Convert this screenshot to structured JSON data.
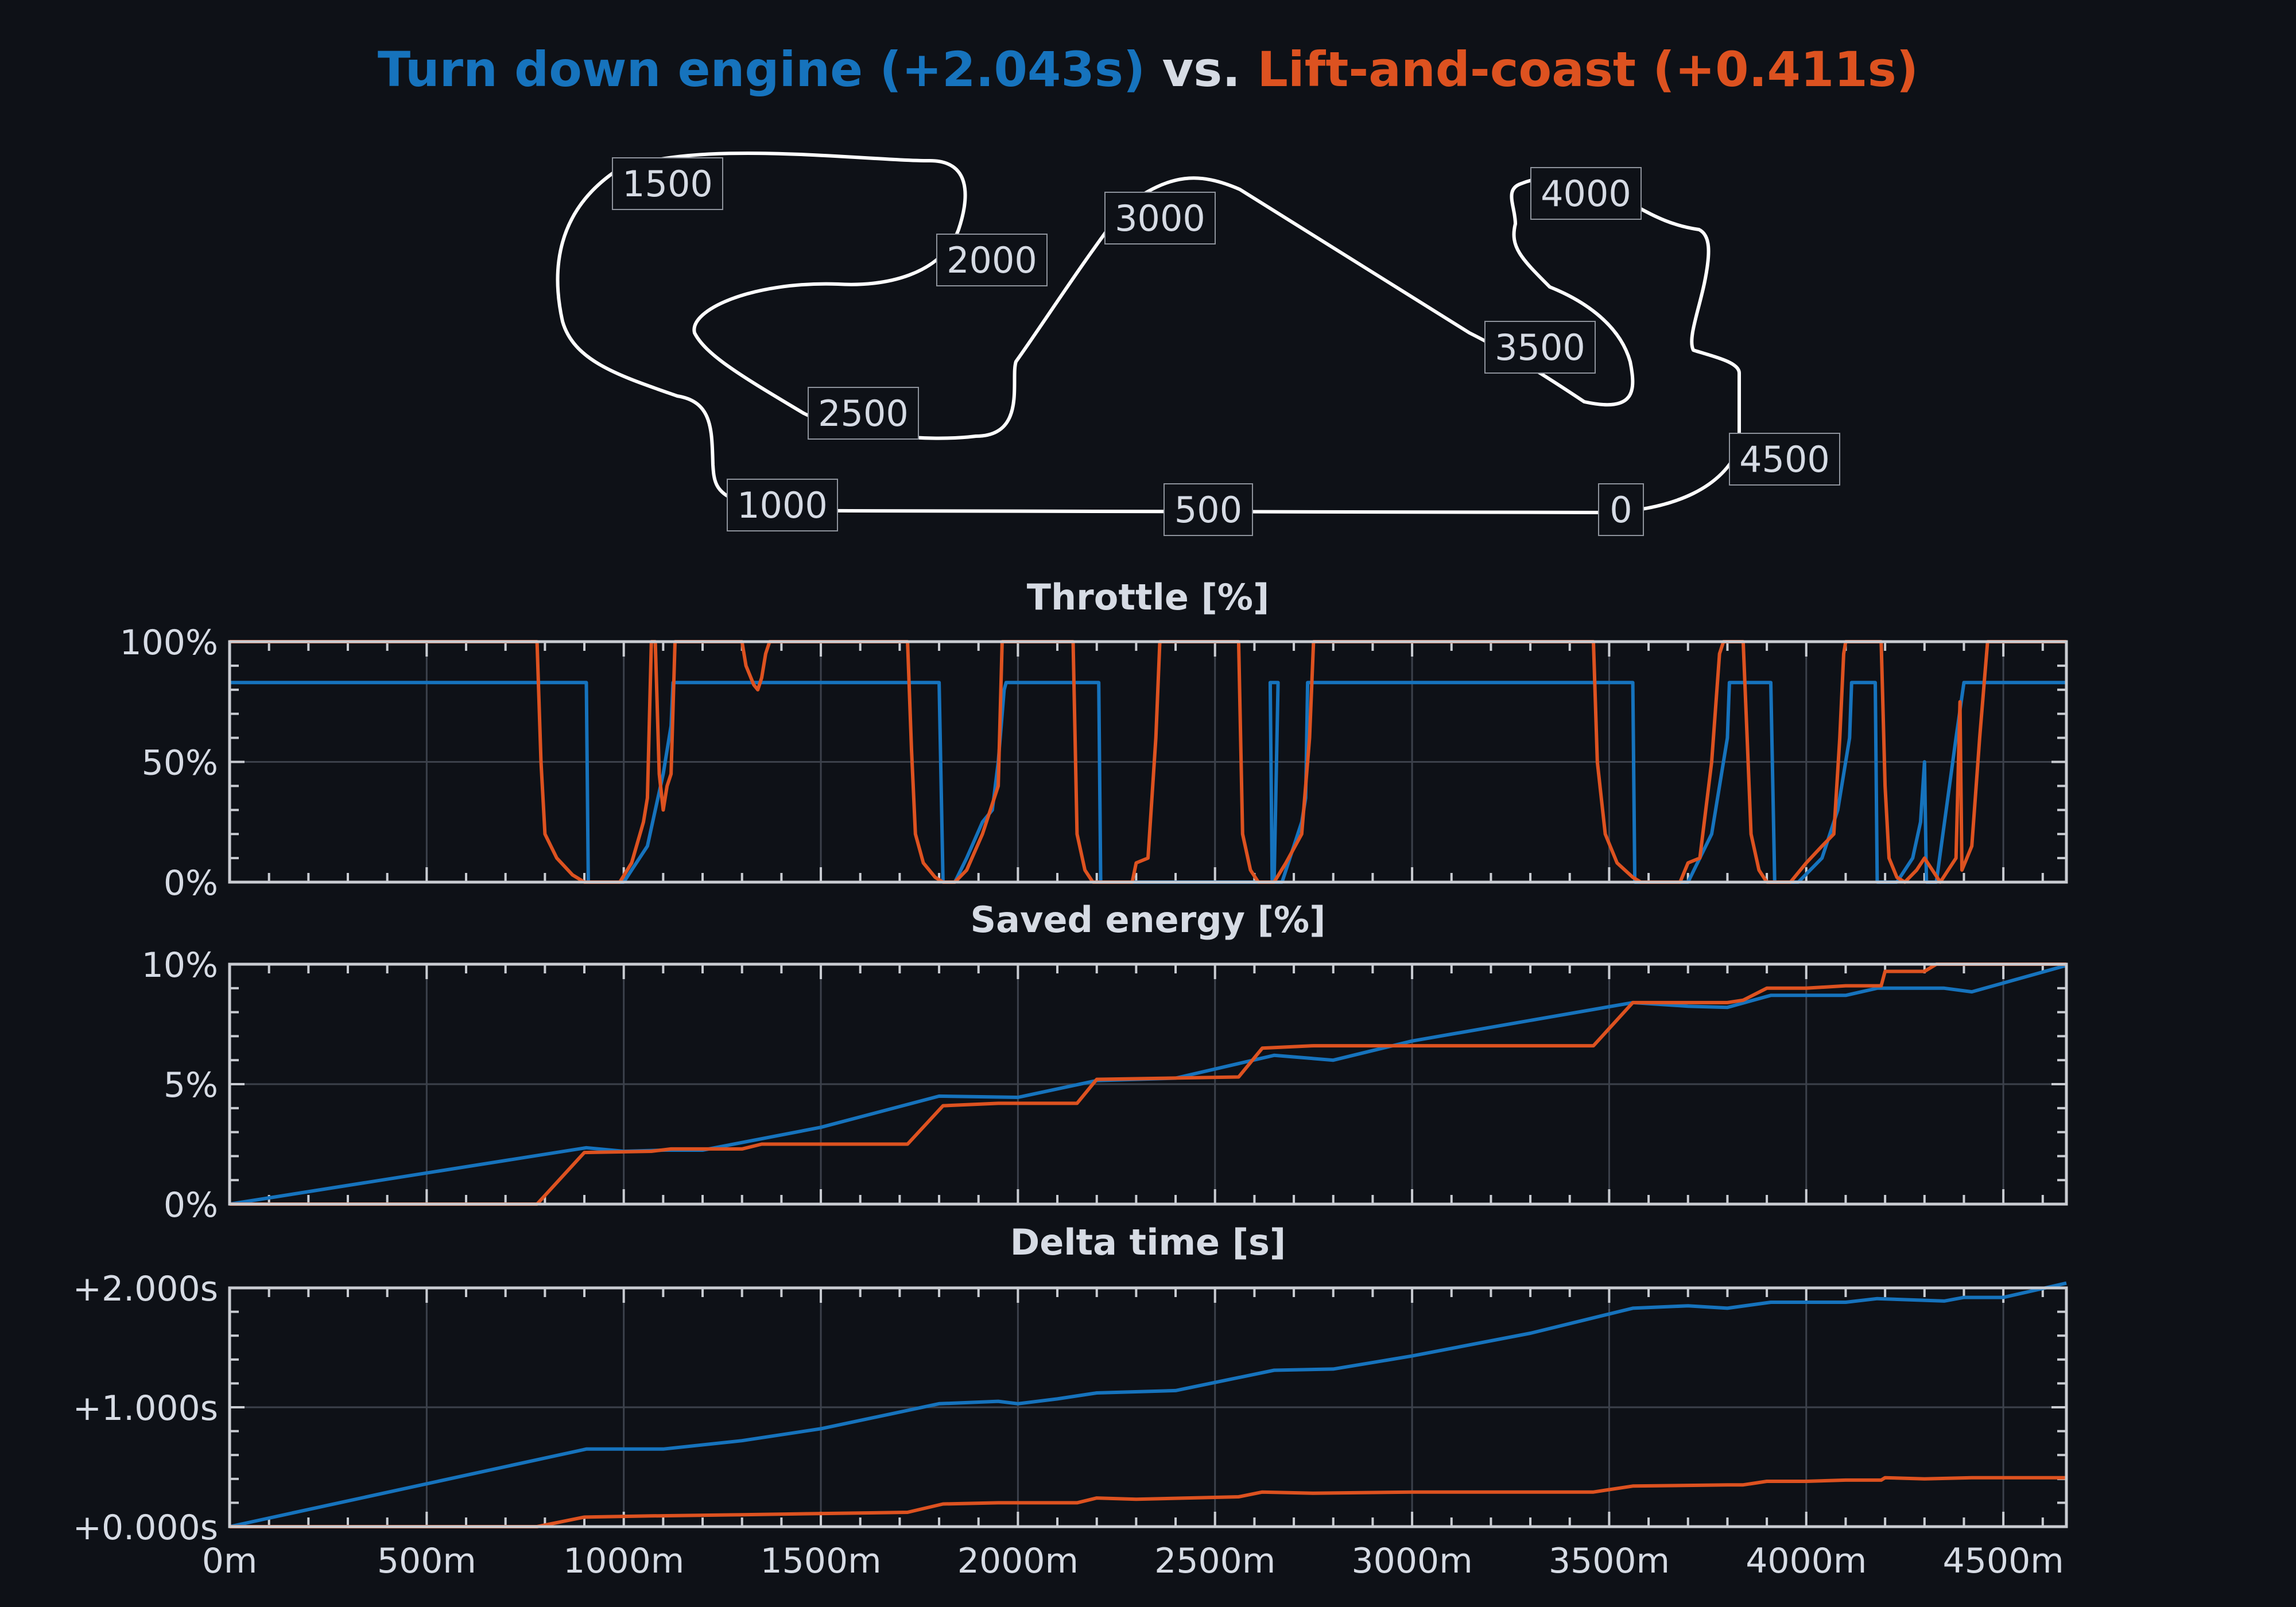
{
  "title": {
    "part1": "Turn down engine (+2.043s)",
    "vs": " vs. ",
    "part2": "Lift-and-coast (+0.411s)"
  },
  "colors": {
    "background": "#0e1117",
    "turn_down": "#1673bd",
    "lift_coast": "#dd5220",
    "text": "#d6dbe4",
    "axis": "#c9ccd2",
    "grid": "#3c414b"
  },
  "track_labels": [
    "0",
    "500",
    "1000",
    "1500",
    "2000",
    "2500",
    "3000",
    "3500",
    "4000",
    "4500"
  ],
  "chart_data": [
    {
      "type": "line",
      "title": "Throttle [%]",
      "x_ticks": [
        "0m",
        "500m",
        "1000m",
        "1500m",
        "2000m",
        "2500m",
        "3000m",
        "3500m",
        "4000m",
        "4500m"
      ],
      "y_ticks": [
        "0%",
        "50%",
        "100%"
      ],
      "xlim": [
        0,
        4660
      ],
      "ylim": [
        0,
        100
      ],
      "grid": true,
      "series": [
        {
          "name": "Turn down engine",
          "color": "#1673bd",
          "points": [
            [
              0,
              83
            ],
            [
              905,
              83
            ],
            [
              910,
              0
            ],
            [
              1000,
              0
            ],
            [
              1020,
              5
            ],
            [
              1060,
              15
            ],
            [
              1080,
              30
            ],
            [
              1100,
              45
            ],
            [
              1120,
              65
            ],
            [
              1125,
              83
            ],
            [
              1800,
              83
            ],
            [
              1810,
              0
            ],
            [
              1840,
              0
            ],
            [
              1870,
              10
            ],
            [
              1910,
              25
            ],
            [
              1935,
              30
            ],
            [
              1950,
              50
            ],
            [
              1965,
              80
            ],
            [
              1970,
              83
            ],
            [
              2205,
              83
            ],
            [
              2210,
              0
            ],
            [
              2600,
              0
            ],
            [
              2610,
              0
            ],
            [
              2630,
              0
            ],
            [
              2650,
              0
            ],
            [
              2660,
              83
            ],
            [
              2640,
              83
            ],
            [
              2645,
              0
            ],
            [
              2670,
              0
            ],
            [
              2690,
              10
            ],
            [
              2720,
              25
            ],
            [
              2730,
              35
            ],
            [
              2735,
              83
            ],
            [
              3560,
              83
            ],
            [
              3565,
              0
            ],
            [
              3630,
              0
            ],
            [
              3700,
              0
            ],
            [
              3760,
              20
            ],
            [
              3800,
              60
            ],
            [
              3805,
              83
            ],
            [
              3910,
              83
            ],
            [
              3920,
              0
            ],
            [
              3980,
              0
            ],
            [
              4040,
              10
            ],
            [
              4080,
              30
            ],
            [
              4110,
              60
            ],
            [
              4115,
              83
            ],
            [
              4175,
              83
            ],
            [
              4180,
              0
            ],
            [
              4230,
              0
            ],
            [
              4270,
              10
            ],
            [
              4290,
              25
            ],
            [
              4300,
              50
            ],
            [
              4305,
              0
            ],
            [
              4330,
              0
            ],
            [
              4380,
              60
            ],
            [
              4400,
              83
            ],
            [
              4660,
              83
            ]
          ]
        },
        {
          "name": "Lift-and-coast",
          "color": "#dd5220",
          "points": [
            [
              0,
              100
            ],
            [
              780,
              100
            ],
            [
              790,
              50
            ],
            [
              800,
              20
            ],
            [
              830,
              10
            ],
            [
              870,
              3
            ],
            [
              900,
              0
            ],
            [
              990,
              0
            ],
            [
              1020,
              8
            ],
            [
              1050,
              25
            ],
            [
              1060,
              35
            ],
            [
              1070,
              100
            ],
            [
              1080,
              100
            ],
            [
              1090,
              45
            ],
            [
              1100,
              30
            ],
            [
              1110,
              40
            ],
            [
              1120,
              45
            ],
            [
              1130,
              100
            ],
            [
              1300,
              100
            ],
            [
              1310,
              90
            ],
            [
              1330,
              82
            ],
            [
              1340,
              80
            ],
            [
              1350,
              85
            ],
            [
              1360,
              95
            ],
            [
              1370,
              100
            ],
            [
              1720,
              100
            ],
            [
              1730,
              55
            ],
            [
              1740,
              20
            ],
            [
              1760,
              8
            ],
            [
              1790,
              2
            ],
            [
              1810,
              0
            ],
            [
              1840,
              0
            ],
            [
              1870,
              5
            ],
            [
              1910,
              20
            ],
            [
              1950,
              40
            ],
            [
              1960,
              100
            ],
            [
              2140,
              100
            ],
            [
              2150,
              20
            ],
            [
              2170,
              5
            ],
            [
              2190,
              0
            ],
            [
              2290,
              0
            ],
            [
              2300,
              8
            ],
            [
              2330,
              10
            ],
            [
              2350,
              60
            ],
            [
              2360,
              100
            ],
            [
              2560,
              100
            ],
            [
              2570,
              20
            ],
            [
              2590,
              5
            ],
            [
              2610,
              0
            ],
            [
              2650,
              0
            ],
            [
              2680,
              8
            ],
            [
              2720,
              20
            ],
            [
              2740,
              60
            ],
            [
              2750,
              100
            ],
            [
              3460,
              100
            ],
            [
              3470,
              50
            ],
            [
              3490,
              20
            ],
            [
              3520,
              8
            ],
            [
              3560,
              2
            ],
            [
              3580,
              0
            ],
            [
              3680,
              0
            ],
            [
              3700,
              8
            ],
            [
              3730,
              10
            ],
            [
              3760,
              50
            ],
            [
              3780,
              95
            ],
            [
              3790,
              100
            ],
            [
              3840,
              100
            ],
            [
              3850,
              60
            ],
            [
              3860,
              20
            ],
            [
              3880,
              5
            ],
            [
              3900,
              0
            ],
            [
              3960,
              0
            ],
            [
              4000,
              8
            ],
            [
              4040,
              15
            ],
            [
              4070,
              20
            ],
            [
              4085,
              60
            ],
            [
              4095,
              95
            ],
            [
              4100,
              100
            ],
            [
              4190,
              100
            ],
            [
              4200,
              40
            ],
            [
              4210,
              10
            ],
            [
              4230,
              2
            ],
            [
              4250,
              0
            ],
            [
              4280,
              5
            ],
            [
              4300,
              10
            ],
            [
              4320,
              5
            ],
            [
              4340,
              0
            ],
            [
              4360,
              5
            ],
            [
              4380,
              10
            ],
            [
              4390,
              75
            ],
            [
              4395,
              5
            ],
            [
              4420,
              15
            ],
            [
              4440,
              60
            ],
            [
              4460,
              100
            ],
            [
              4660,
              100
            ]
          ]
        }
      ]
    },
    {
      "type": "line",
      "title": "Saved energy [%]",
      "x_ticks": [
        "0m",
        "500m",
        "1000m",
        "1500m",
        "2000m",
        "2500m",
        "3000m",
        "3500m",
        "4000m",
        "4500m"
      ],
      "y_ticks": [
        "0%",
        "5%",
        "10%"
      ],
      "xlim": [
        0,
        4660
      ],
      "ylim": [
        0,
        10
      ],
      "grid": true,
      "series": [
        {
          "name": "Turn down engine",
          "color": "#1673bd",
          "points": [
            [
              0,
              0
            ],
            [
              905,
              2.35
            ],
            [
              1000,
              2.2
            ],
            [
              1100,
              2.25
            ],
            [
              1200,
              2.25
            ],
            [
              1500,
              3.2
            ],
            [
              1800,
              4.5
            ],
            [
              2000,
              4.45
            ],
            [
              2200,
              5.15
            ],
            [
              2400,
              5.25
            ],
            [
              2650,
              6.2
            ],
            [
              2800,
              6.0
            ],
            [
              3000,
              6.8
            ],
            [
              3560,
              8.4
            ],
            [
              3700,
              8.25
            ],
            [
              3800,
              8.2
            ],
            [
              3910,
              8.7
            ],
            [
              4100,
              8.7
            ],
            [
              4180,
              9.0
            ],
            [
              4350,
              9.0
            ],
            [
              4420,
              8.85
            ],
            [
              4660,
              9.95
            ]
          ]
        },
        {
          "name": "Lift-and-coast",
          "color": "#dd5220",
          "points": [
            [
              0,
              0
            ],
            [
              780,
              0
            ],
            [
              900,
              2.15
            ],
            [
              1070,
              2.2
            ],
            [
              1120,
              2.3
            ],
            [
              1300,
              2.3
            ],
            [
              1350,
              2.5
            ],
            [
              1720,
              2.5
            ],
            [
              1810,
              4.1
            ],
            [
              1950,
              4.2
            ],
            [
              2150,
              4.2
            ],
            [
              2200,
              5.2
            ],
            [
              2560,
              5.3
            ],
            [
              2620,
              6.5
            ],
            [
              2750,
              6.6
            ],
            [
              3460,
              6.6
            ],
            [
              3560,
              8.4
            ],
            [
              3800,
              8.4
            ],
            [
              3840,
              8.5
            ],
            [
              3900,
              9.0
            ],
            [
              4000,
              9.0
            ],
            [
              4100,
              9.1
            ],
            [
              4190,
              9.1
            ],
            [
              4200,
              9.7
            ],
            [
              4300,
              9.7
            ],
            [
              4330,
              10
            ],
            [
              4660,
              10
            ]
          ]
        }
      ]
    },
    {
      "type": "line",
      "title": "Delta time [s]",
      "x_ticks": [
        "0m",
        "500m",
        "1000m",
        "1500m",
        "2000m",
        "2500m",
        "3000m",
        "3500m",
        "4000m",
        "4500m"
      ],
      "y_ticks": [
        "+0.000s",
        "+1.000s",
        "+2.000s"
      ],
      "xlim": [
        0,
        4660
      ],
      "ylim": [
        0,
        2
      ],
      "grid": true,
      "series": [
        {
          "name": "Turn down engine",
          "color": "#1673bd",
          "points": [
            [
              0,
              0
            ],
            [
              905,
              0.65
            ],
            [
              1000,
              0.65
            ],
            [
              1100,
              0.65
            ],
            [
              1300,
              0.72
            ],
            [
              1500,
              0.82
            ],
            [
              1800,
              1.03
            ],
            [
              1950,
              1.05
            ],
            [
              2000,
              1.03
            ],
            [
              2100,
              1.07
            ],
            [
              2200,
              1.12
            ],
            [
              2400,
              1.14
            ],
            [
              2650,
              1.31
            ],
            [
              2800,
              1.32
            ],
            [
              3000,
              1.43
            ],
            [
              3300,
              1.62
            ],
            [
              3560,
              1.83
            ],
            [
              3700,
              1.85
            ],
            [
              3800,
              1.83
            ],
            [
              3910,
              1.88
            ],
            [
              4100,
              1.88
            ],
            [
              4180,
              1.91
            ],
            [
              4350,
              1.89
            ],
            [
              4400,
              1.92
            ],
            [
              4500,
              1.92
            ],
            [
              4660,
              2.04
            ]
          ]
        },
        {
          "name": "Lift-and-coast",
          "color": "#dd5220",
          "points": [
            [
              0,
              0
            ],
            [
              780,
              0
            ],
            [
              900,
              0.08
            ],
            [
              1070,
              0.09
            ],
            [
              1300,
              0.1
            ],
            [
              1720,
              0.12
            ],
            [
              1810,
              0.19
            ],
            [
              1950,
              0.2
            ],
            [
              2150,
              0.2
            ],
            [
              2200,
              0.24
            ],
            [
              2300,
              0.23
            ],
            [
              2560,
              0.25
            ],
            [
              2620,
              0.29
            ],
            [
              2750,
              0.28
            ],
            [
              3000,
              0.29
            ],
            [
              3460,
              0.29
            ],
            [
              3560,
              0.34
            ],
            [
              3800,
              0.35
            ],
            [
              3840,
              0.35
            ],
            [
              3900,
              0.38
            ],
            [
              4000,
              0.38
            ],
            [
              4100,
              0.39
            ],
            [
              4190,
              0.39
            ],
            [
              4200,
              0.41
            ],
            [
              4300,
              0.4
            ],
            [
              4420,
              0.41
            ],
            [
              4660,
              0.41
            ]
          ]
        }
      ]
    }
  ]
}
